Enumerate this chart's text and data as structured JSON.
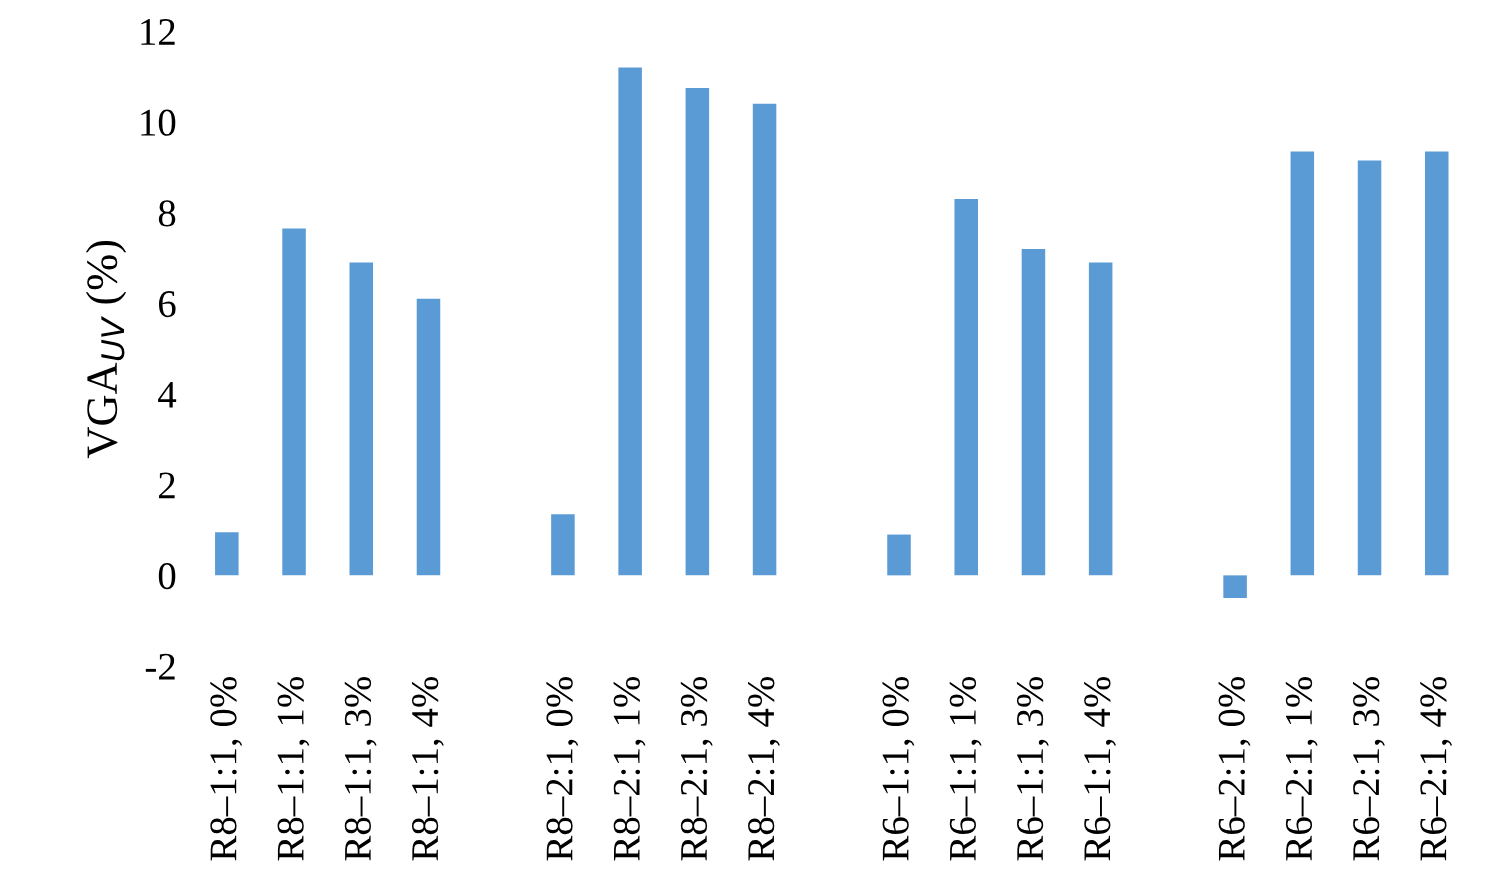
{
  "chart_data": {
    "type": "bar",
    "ylabel": "VGA$_{UV}$ (%)",
    "categories": [
      "R8–1:1, 0%",
      "R8–1:1, 1%",
      "R8–1:1, 3%",
      "R8–1:1, 4%",
      null,
      "R8–2:1, 0%",
      "R8–2:1, 1%",
      "R8–2:1, 3%",
      "R8–2:1, 4%",
      null,
      "R6–1:1, 0%",
      "R6–1:1, 1%",
      "R6–1:1, 3%",
      "R6–1:1, 4%",
      null,
      "R6–2:1, 0%",
      "R6–2:1, 1%",
      "R6–2:1, 3%",
      "R6–2:1, 4%"
    ],
    "values": [
      0.95,
      7.65,
      6.9,
      6.1,
      null,
      1.35,
      11.2,
      10.75,
      10.4,
      null,
      0.9,
      8.3,
      7.2,
      6.9,
      null,
      -0.5,
      9.35,
      9.15,
      9.35
    ],
    "color": "#5b9bd5",
    "ylim": [
      -2,
      12
    ],
    "yticks": [
      -2,
      0,
      2,
      4,
      6,
      8,
      10,
      12
    ],
    "grid": false,
    "legend": false
  }
}
